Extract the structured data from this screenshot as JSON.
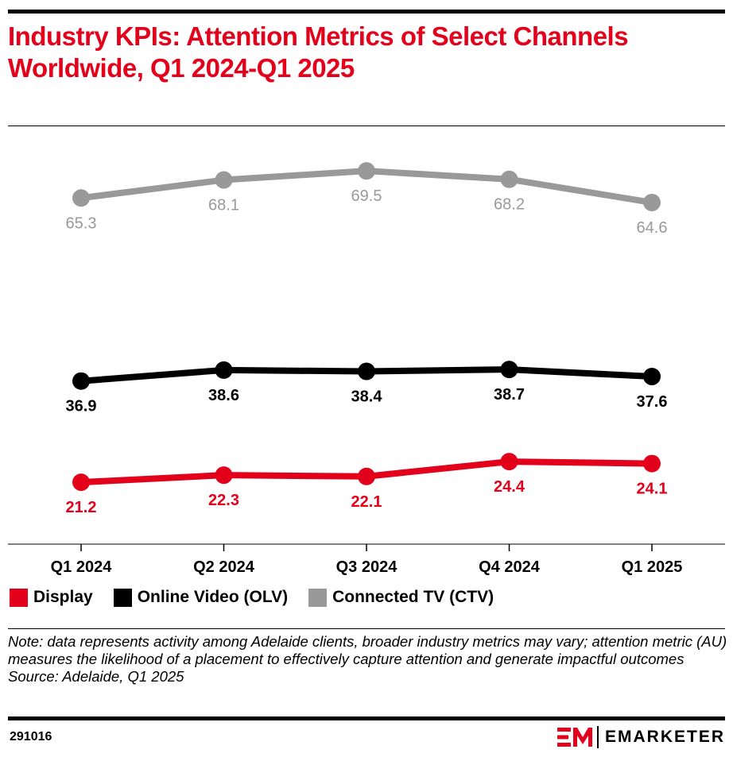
{
  "title": "Industry KPIs: Attention Metrics of Select Channels Worldwide, Q1 2024-Q1 2025",
  "chart_data": {
    "type": "line",
    "categories": [
      "Q1 2024",
      "Q2 2024",
      "Q3 2024",
      "Q4 2024",
      "Q1 2025"
    ],
    "series": [
      {
        "name": "Display",
        "values": [
          21.2,
          22.3,
          22.1,
          24.4,
          24.1
        ],
        "color": "#e3001b",
        "label_pos": "below"
      },
      {
        "name": "Online Video (OLV)",
        "values": [
          36.9,
          38.6,
          38.4,
          38.7,
          37.6
        ],
        "color": "#000000",
        "label_pos": "below"
      },
      {
        "name": "Connected TV (CTV)",
        "values": [
          65.3,
          68.1,
          69.5,
          68.2,
          64.6
        ],
        "color": "#999999",
        "label_pos": "below"
      }
    ],
    "ylim": [
      11.6,
      76.3
    ],
    "grid": false,
    "legend_position": "bottom-left"
  },
  "notes": {
    "note": "Note: data represents activity among Adelaide clients, broader industry metrics may vary; attention metric (AU) measures the likelihood of a placement to effectively capture attention and generate impactful outcomes",
    "source": "Source: Adelaide, Q1 2025"
  },
  "chart_id": "291016",
  "brand": {
    "name": "EMARKETER",
    "mark_color": "#e3001b"
  }
}
